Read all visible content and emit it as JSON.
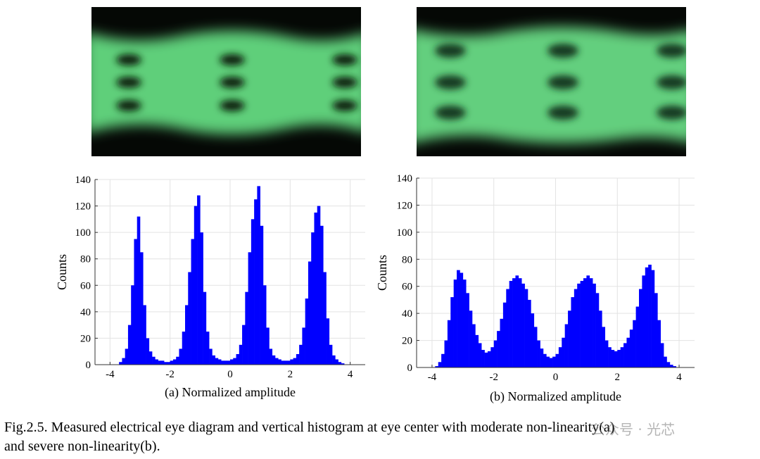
{
  "chart_data": [
    {
      "type": "histogram",
      "xlabel": "(a)  Normalized amplitude",
      "ylabel": "Counts",
      "color": "#0000ff",
      "grid": true,
      "xlim": [
        -4.5,
        4.5
      ],
      "ylim": [
        0,
        140
      ],
      "xticks": [
        -4,
        -2,
        0,
        2,
        4
      ],
      "yticks": [
        0,
        20,
        40,
        60,
        80,
        100,
        120,
        140
      ],
      "bins": [
        -4.0,
        -3.9,
        -3.8,
        -3.7,
        -3.6,
        -3.5,
        -3.4,
        -3.3,
        -3.2,
        -3.1,
        -3.0,
        -2.9,
        -2.8,
        -2.7,
        -2.6,
        -2.5,
        -2.4,
        -2.3,
        -2.2,
        -2.1,
        -2.0,
        -1.9,
        -1.8,
        -1.7,
        -1.6,
        -1.5,
        -1.4,
        -1.3,
        -1.2,
        -1.1,
        -1.0,
        -0.9,
        -0.8,
        -0.7,
        -0.6,
        -0.5,
        -0.4,
        -0.3,
        -0.2,
        -0.1,
        0.0,
        0.1,
        0.2,
        0.3,
        0.4,
        0.5,
        0.6,
        0.7,
        0.8,
        0.9,
        1.0,
        1.1,
        1.2,
        1.3,
        1.4,
        1.5,
        1.6,
        1.7,
        1.8,
        1.9,
        2.0,
        2.1,
        2.2,
        2.3,
        2.4,
        2.5,
        2.6,
        2.7,
        2.8,
        2.9,
        3.0,
        3.1,
        3.2,
        3.3,
        3.4,
        3.5,
        3.6,
        3.7,
        3.8,
        3.9,
        4.0
      ],
      "values": [
        0,
        0,
        0,
        2,
        5,
        12,
        30,
        60,
        95,
        112,
        85,
        45,
        20,
        10,
        6,
        4,
        3,
        3,
        2,
        2,
        3,
        4,
        6,
        12,
        25,
        45,
        70,
        95,
        120,
        128,
        100,
        55,
        25,
        12,
        7,
        5,
        4,
        3,
        3,
        3,
        4,
        5,
        8,
        15,
        30,
        55,
        85,
        110,
        125,
        135,
        105,
        60,
        28,
        12,
        7,
        5,
        4,
        3,
        3,
        3,
        4,
        5,
        8,
        15,
        28,
        50,
        78,
        100,
        115,
        120,
        105,
        70,
        35,
        15,
        7,
        4,
        2,
        1,
        0,
        0
      ]
    },
    {
      "type": "histogram",
      "xlabel": "(b) Normalized amplitude",
      "ylabel": "Counts",
      "color": "#0000ff",
      "grid": true,
      "xlim": [
        -4.5,
        4.5
      ],
      "ylim": [
        0,
        140
      ],
      "xticks": [
        -4,
        -2,
        0,
        2,
        4
      ],
      "yticks": [
        0,
        20,
        40,
        60,
        80,
        100,
        120,
        140
      ],
      "bins": [
        -4.0,
        -3.9,
        -3.8,
        -3.7,
        -3.6,
        -3.5,
        -3.4,
        -3.3,
        -3.2,
        -3.1,
        -3.0,
        -2.9,
        -2.8,
        -2.7,
        -2.6,
        -2.5,
        -2.4,
        -2.3,
        -2.2,
        -2.1,
        -2.0,
        -1.9,
        -1.8,
        -1.7,
        -1.6,
        -1.5,
        -1.4,
        -1.3,
        -1.2,
        -1.1,
        -1.0,
        -0.9,
        -0.8,
        -0.7,
        -0.6,
        -0.5,
        -0.4,
        -0.3,
        -0.2,
        -0.1,
        0.0,
        0.1,
        0.2,
        0.3,
        0.4,
        0.5,
        0.6,
        0.7,
        0.8,
        0.9,
        1.0,
        1.1,
        1.2,
        1.3,
        1.4,
        1.5,
        1.6,
        1.7,
        1.8,
        1.9,
        2.0,
        2.1,
        2.2,
        2.3,
        2.4,
        2.5,
        2.6,
        2.7,
        2.8,
        2.9,
        3.0,
        3.1,
        3.2,
        3.3,
        3.4,
        3.5,
        3.6,
        3.7,
        3.8,
        3.9,
        4.0
      ],
      "values": [
        0,
        1,
        4,
        10,
        20,
        35,
        52,
        65,
        72,
        70,
        65,
        55,
        42,
        32,
        24,
        18,
        13,
        11,
        12,
        15,
        20,
        27,
        36,
        48,
        58,
        64,
        66,
        68,
        66,
        62,
        58,
        50,
        40,
        30,
        20,
        14,
        10,
        8,
        7,
        8,
        10,
        15,
        22,
        32,
        42,
        52,
        58,
        62,
        64,
        66,
        68,
        66,
        62,
        55,
        42,
        30,
        20,
        15,
        13,
        12,
        13,
        15,
        18,
        22,
        28,
        35,
        45,
        58,
        68,
        74,
        76,
        72,
        55,
        35,
        18,
        8,
        4,
        2,
        1,
        0
      ]
    }
  ],
  "caption": [
    "Fig.2.5. Measured electrical eye diagram and vertical histogram at eye center with moderate non-linearity(a)",
    "and severe non-linearity(b)."
  ],
  "watermark": "公众号 · 光芯"
}
